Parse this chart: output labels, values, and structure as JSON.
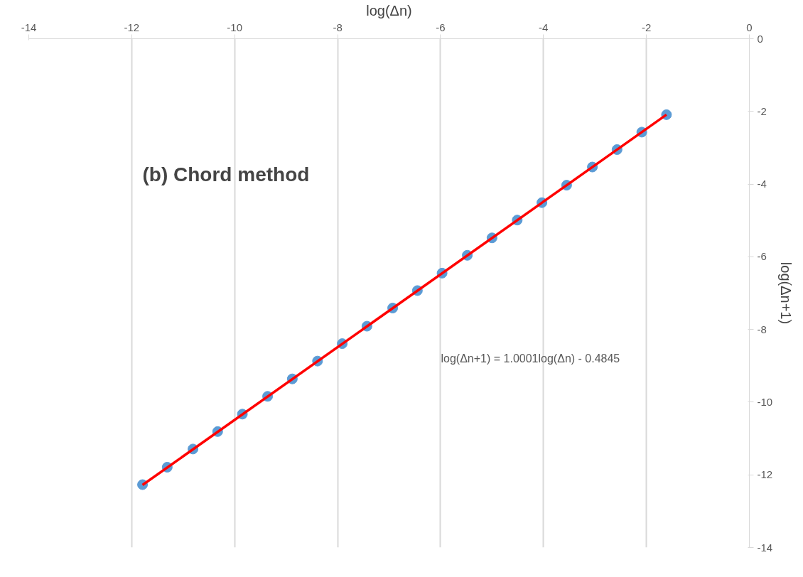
{
  "chart_data": {
    "type": "scatter",
    "title": "(b) Chord method",
    "xlabel": "log(Δn)",
    "ylabel": "log(Δn+1)",
    "x": [
      -11.79,
      -11.31,
      -10.81,
      -10.33,
      -9.85,
      -9.36,
      -8.88,
      -8.39,
      -7.91,
      -7.43,
      -6.93,
      -6.45,
      -5.97,
      -5.48,
      -5.0,
      -4.51,
      -4.03,
      -3.55,
      -3.05,
      -2.57,
      -2.09,
      -1.61
    ],
    "series": [
      {
        "color": "#5b9bd5",
        "marker": "circle",
        "values": [
          -12.27,
          -11.79,
          -11.29,
          -10.81,
          -10.33,
          -9.84,
          -9.36,
          -8.87,
          -8.39,
          -7.91,
          -7.41,
          -6.93,
          -6.45,
          -5.96,
          -5.48,
          -4.99,
          -4.51,
          -4.03,
          -3.53,
          -3.05,
          -2.57,
          -2.09
        ]
      },
      {
        "type": "line",
        "color": "#ff0000",
        "x": [
          -11.79,
          -1.61
        ],
        "values": [
          -12.28,
          -2.09
        ],
        "line_style": "solid"
      }
    ],
    "annotations": [
      "log(Δn+1) = 1.0001log(Δn) - 0.4845"
    ],
    "xlim": [
      -14,
      0
    ],
    "ylim": [
      -14,
      0
    ],
    "xticks": [
      -14,
      -12,
      -10,
      -8,
      -6,
      -4,
      -2,
      0
    ],
    "yticks": [
      0,
      -2,
      -4,
      -6,
      -8,
      -10,
      -12,
      -14
    ],
    "grid": "x"
  }
}
